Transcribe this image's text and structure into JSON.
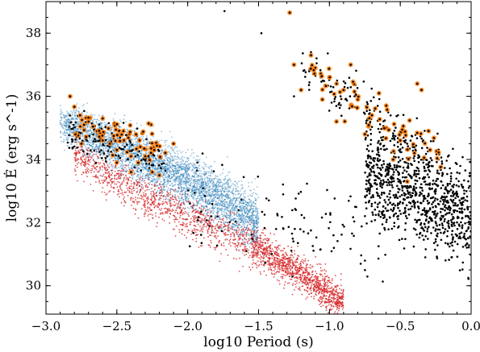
{
  "chart_data": {
    "type": "scatter",
    "xlabel": "log10 Period (s)",
    "ylabel": "log10 Ė (erg s^-1)",
    "xlim": [
      -3.0,
      0.0
    ],
    "ylim": [
      29.1,
      39.0
    ],
    "xticks": [
      -3.0,
      -2.5,
      -2.0,
      -1.5,
      -1.0,
      -0.5,
      0.0
    ],
    "xtick_labels": [
      "−3.0",
      "−2.5",
      "−2.0",
      "−1.5",
      "−1.0",
      "−0.5",
      "0.0"
    ],
    "yticks": [
      30,
      32,
      34,
      36,
      38
    ],
    "ytick_labels": [
      "30",
      "32",
      "34",
      "36",
      "38"
    ],
    "grid": false,
    "legend": "none",
    "colors": {
      "blue": "#1f77b4",
      "red": "#d62728",
      "black": "#000000",
      "orange": "#ff7f0e"
    },
    "series": [
      {
        "color": "blue",
        "marker": "dense small dots",
        "description_points": [
          [
            -2.9,
            35.4
          ],
          [
            -2.7,
            35.0
          ],
          [
            -2.5,
            34.4
          ],
          [
            -2.3,
            33.9
          ],
          [
            -2.1,
            33.3
          ],
          [
            -1.9,
            32.8
          ],
          [
            -1.7,
            32.2
          ],
          [
            -1.5,
            31.7
          ]
        ],
        "x_range": [
          -2.9,
          -1.5
        ],
        "upper_edge": [
          [
            -2.9,
            36.0
          ],
          [
            -2.5,
            35.5
          ],
          [
            -2.0,
            34.5
          ],
          [
            -1.5,
            33.3
          ]
        ],
        "lower_edge": [
          [
            -2.9,
            34.4
          ],
          [
            -2.5,
            33.3
          ],
          [
            -2.0,
            32.2
          ],
          [
            -1.5,
            30.8
          ]
        ]
      },
      {
        "color": "red",
        "marker": "small dots",
        "x_range": [
          -2.8,
          -0.9
        ],
        "centre_line": [
          [
            -2.8,
            34.2
          ],
          [
            -2.4,
            33.1
          ],
          [
            -2.0,
            32.2
          ],
          [
            -1.6,
            31.4
          ],
          [
            -1.2,
            30.4
          ],
          [
            -0.95,
            29.6
          ]
        ]
      },
      {
        "color": "black",
        "marker": "dots",
        "groups": [
          {
            "x_range": [
              -2.85,
              -2.15
            ],
            "y_centre_at_xmin": 34.9,
            "slope": -1.3
          },
          {
            "x_range": [
              -0.75,
              0.0
            ],
            "y_centre_at_xmin": 33.6,
            "slope": -1.8
          },
          {
            "x_range": [
              -2.0,
              -0.6
            ],
            "y_centre_at_xmin": 32.8,
            "slope": -1.0
          }
        ],
        "outliers": [
          [
            -1.74,
            38.7
          ],
          [
            -1.25,
            36.0
          ],
          [
            -1.48,
            38.0
          ],
          [
            -1.13,
            37.4
          ]
        ]
      },
      {
        "color": "orange",
        "marker": "dots with black centres",
        "points": [
          [
            -2.83,
            36.0
          ],
          [
            -2.76,
            35.4
          ],
          [
            -2.7,
            35.2
          ],
          [
            -2.64,
            34.9
          ],
          [
            -2.6,
            34.6
          ],
          [
            -2.55,
            34.5
          ],
          [
            -2.5,
            34.3
          ],
          [
            -2.45,
            34.6
          ],
          [
            -2.4,
            34.1
          ],
          [
            -2.35,
            33.9
          ],
          [
            -2.3,
            34.1
          ],
          [
            -2.25,
            33.6
          ],
          [
            -2.2,
            33.5
          ],
          [
            -2.1,
            34.5
          ],
          [
            -2.6,
            35.3
          ],
          [
            -2.75,
            34.5
          ],
          [
            -2.5,
            33.9
          ],
          [
            -2.4,
            33.6
          ],
          [
            -1.28,
            38.65
          ],
          [
            -1.13,
            37.3
          ],
          [
            -1.1,
            36.9
          ],
          [
            -1.0,
            36.6
          ],
          [
            -0.9,
            36.2
          ],
          [
            -0.8,
            35.9
          ],
          [
            -0.7,
            35.4
          ],
          [
            -0.6,
            35.0
          ],
          [
            -0.5,
            34.6
          ],
          [
            -0.4,
            34.2
          ],
          [
            -0.38,
            36.4
          ],
          [
            -0.35,
            36.2
          ],
          [
            -0.85,
            37.0
          ],
          [
            -1.05,
            35.9
          ],
          [
            -0.95,
            35.2
          ],
          [
            -0.75,
            34.8
          ],
          [
            -0.55,
            34.0
          ],
          [
            -1.2,
            36.2
          ],
          [
            -0.65,
            36.1
          ],
          [
            -0.45,
            33.3
          ],
          [
            -0.3,
            34.9
          ],
          [
            -1.25,
            37.0
          ]
        ]
      }
    ]
  }
}
